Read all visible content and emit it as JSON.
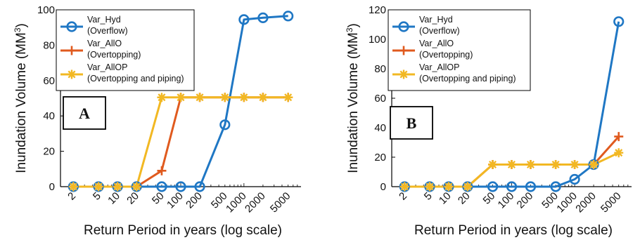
{
  "colors": {
    "var_hyd": "#1f77c4",
    "var_allo": "#e05a1e",
    "var_allop": "#f2b823",
    "axis": "#000000",
    "background": "#ffffff"
  },
  "chart_data": [
    {
      "type": "line",
      "panel_label": "A",
      "xlabel": "Return Period in years (log scale)",
      "ylabel": "Inundation Volume (MM",
      "ylabel_sup": "3",
      "ylabel_close": ")",
      "x_scale": "log",
      "x": [
        2,
        5,
        10,
        20,
        50,
        100,
        200,
        500,
        1000,
        2000,
        5000
      ],
      "x_tick_labels": [
        "2",
        "5",
        "10",
        "20",
        "50",
        "100",
        "200",
        "500",
        "1000",
        "2000",
        "5000"
      ],
      "y_ticks": [
        0,
        20,
        40,
        60,
        80,
        100
      ],
      "ylim": [
        0,
        100
      ],
      "grid": false,
      "legend_position": "top-left",
      "series": [
        {
          "name": "Var_Hyd",
          "name_line2": "(Overflow)",
          "color_key": "var_hyd",
          "marker": "circle",
          "values": [
            0,
            0,
            0,
            0,
            0,
            0,
            0,
            35,
            94.5,
            95.5,
            96.5
          ]
        },
        {
          "name": "Var_AllO",
          "name_line2": "(Overtopping)",
          "color_key": "var_allo",
          "marker": "plus",
          "values": [
            0,
            0,
            0,
            0,
            9,
            50.5,
            50.5,
            50.5,
            50.5,
            50.5,
            50.5
          ]
        },
        {
          "name": "Var_AllOP",
          "name_line2": "(Overtopping and piping)",
          "color_key": "var_allop",
          "marker": "star",
          "values": [
            0,
            0,
            0,
            0,
            50.5,
            50.5,
            50.5,
            50.5,
            50.5,
            50.5,
            50.5
          ]
        }
      ]
    },
    {
      "type": "line",
      "panel_label": "B",
      "xlabel": "Return Period in years (log scale)",
      "ylabel": "Inundation Volume (MM",
      "ylabel_sup": "3",
      "ylabel_close": ")",
      "x_scale": "log",
      "x": [
        2,
        5,
        10,
        20,
        50,
        100,
        200,
        500,
        1000,
        2000,
        5000
      ],
      "x_tick_labels": [
        "2",
        "5",
        "10",
        "20",
        "50",
        "100",
        "200",
        "500",
        "1000",
        "2000",
        "5000"
      ],
      "y_ticks": [
        0,
        20,
        40,
        60,
        80,
        100,
        120
      ],
      "ylim": [
        0,
        120
      ],
      "grid": false,
      "legend_position": "top-left",
      "series": [
        {
          "name": "Var_Hyd",
          "name_line2": "(Overflow)",
          "color_key": "var_hyd",
          "marker": "circle",
          "values": [
            0,
            0,
            0,
            0,
            0,
            0,
            0,
            0,
            5,
            15,
            112
          ]
        },
        {
          "name": "Var_AllO",
          "name_line2": "(Overtopping)",
          "color_key": "var_allo",
          "marker": "plus",
          "values": [
            0,
            0,
            0,
            0,
            15,
            15,
            15,
            15,
            15,
            15,
            34
          ]
        },
        {
          "name": "Var_AllOP",
          "name_line2": "(Overtopping and piping)",
          "color_key": "var_allop",
          "marker": "star",
          "values": [
            0,
            0,
            0,
            0,
            15,
            15,
            15,
            15,
            15,
            15,
            23
          ]
        }
      ]
    }
  ]
}
